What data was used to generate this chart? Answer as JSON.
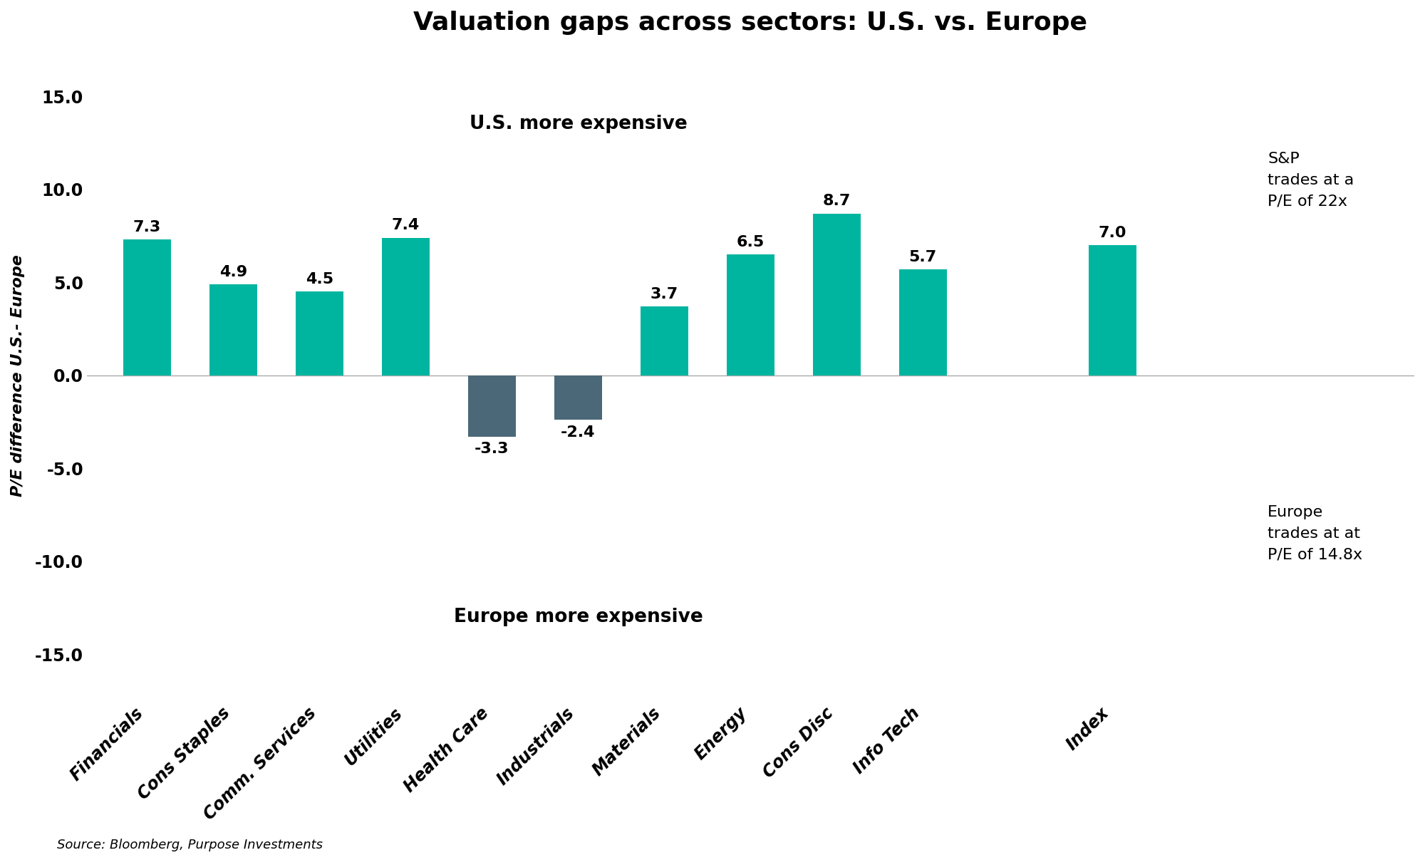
{
  "title": "Valuation gaps across sectors: U.S. vs. Europe",
  "categories": [
    "Financials",
    "Cons Staples",
    "Comm. Services",
    "Utilities",
    "Health Care",
    "Industrials",
    "Materials",
    "Energy",
    "Cons Disc",
    "Info Tech",
    "Index"
  ],
  "values": [
    7.3,
    4.9,
    4.5,
    7.4,
    -3.3,
    -2.4,
    3.7,
    6.5,
    8.7,
    5.7,
    7.0
  ],
  "bar_colors": [
    "#00B5A0",
    "#00B5A0",
    "#00B5A0",
    "#00B5A0",
    "#4A6878",
    "#4A6878",
    "#00B5A0",
    "#00B5A0",
    "#00B5A0",
    "#00B5A0",
    "#00B5A0"
  ],
  "ylabel": "P/E difference U.S.- Europe",
  "ylim": [
    -17.5,
    17.5
  ],
  "yticks": [
    -15.0,
    -10.0,
    -5.0,
    0.0,
    5.0,
    10.0,
    15.0
  ],
  "us_expensive_label": "U.S. more expensive",
  "eu_expensive_label": "Europe more expensive",
  "annotation_sp": "S&P\ntrades at a\nP/E of 22x",
  "annotation_eu": "Europe\ntrades at at\nP/E of 14.8x",
  "source_text": "Source: Bloomberg, Purpose Investments",
  "background_color": "#FFFFFF",
  "title_fontsize": 26,
  "label_fontsize": 16,
  "tick_fontsize": 17,
  "annotation_fontsize": 16,
  "value_fontsize": 16,
  "bar_width": 0.55
}
